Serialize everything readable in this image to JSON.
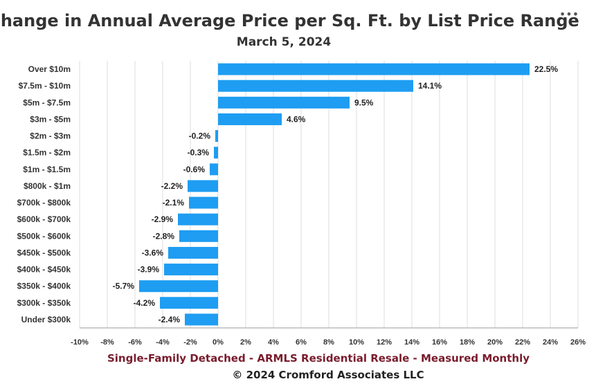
{
  "menu": {
    "icon": "ellipsis-icon",
    "glyph": "•••"
  },
  "footer": {
    "line1": "Single-Family Detached - ARMLS Residential Resale - Measured Monthly",
    "line1_color": "#7a1c2c",
    "line2": "© 2024 Cromford Associates LLC"
  },
  "chart_data": {
    "type": "bar",
    "orientation": "horizontal",
    "title": "Change in Annual Average Price per Sq. Ft. by List Price Range",
    "subtitle": "March 5, 2024",
    "categories": [
      "Over $10m",
      "$7.5m - $10m",
      "$5m - $7.5m",
      "$3m - $5m",
      "$2m - $3m",
      "$1.5m - $2m",
      "$1m - $1.5m",
      "$800k - $1m",
      "$700k - $800k",
      "$600k - $700k",
      "$500k - $600k",
      "$450k - $500k",
      "$400k - $450k",
      "$350k - $400k",
      "$300k - $350k",
      "Under $300k"
    ],
    "values": [
      22.5,
      14.1,
      9.5,
      4.6,
      -0.2,
      -0.3,
      -0.6,
      -2.2,
      -2.1,
      -2.9,
      -2.8,
      -3.6,
      -3.9,
      -5.7,
      -4.2,
      -2.4
    ],
    "data_labels": [
      "22.5%",
      "14.1%",
      "9.5%",
      "4.6%",
      "-0.2%",
      "-0.3%",
      "-0.6%",
      "-2.2%",
      "-2.1%",
      "-2.9%",
      "-2.8%",
      "-3.6%",
      "-3.9%",
      "-5.7%",
      "-4.2%",
      "-2.4%"
    ],
    "xlim": [
      -10,
      26
    ],
    "xticks": [
      -10,
      -8,
      -6,
      -4,
      -2,
      0,
      2,
      4,
      6,
      8,
      10,
      12,
      14,
      16,
      18,
      20,
      22,
      24,
      26
    ],
    "xtick_labels": [
      "-10%",
      "-8%",
      "-6%",
      "-4%",
      "-2%",
      "0%",
      "2%",
      "4%",
      "6%",
      "8%",
      "10%",
      "12%",
      "14%",
      "16%",
      "18%",
      "20%",
      "22%",
      "24%",
      "26%"
    ],
    "xlabel": "",
    "ylabel": "",
    "grid": true,
    "legend": "none",
    "bar_color": "#1e9df2"
  }
}
